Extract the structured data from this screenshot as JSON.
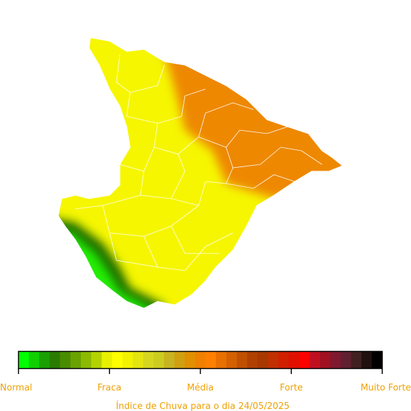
{
  "legend": {
    "labels": [
      "Normal",
      "Fraca",
      "Média",
      "Forte",
      "Muito Forte"
    ],
    "colors": [
      "#00ff00",
      "#10d000",
      "#1aa000",
      "#2a7c00",
      "#4a8c00",
      "#6aa200",
      "#8cba00",
      "#b4d200",
      "#e8f000",
      "#ffff00",
      "#f2f200",
      "#e4e410",
      "#d6d620",
      "#cccc20",
      "#c8b420",
      "#d0a010",
      "#e09000",
      "#f08000",
      "#ff8000",
      "#e87000",
      "#d46000",
      "#c05000",
      "#b04000",
      "#a83800",
      "#c03000",
      "#d02000",
      "#e01000",
      "#ff0000",
      "#c01020",
      "#a01020",
      "#801830",
      "#602030",
      "#402020",
      "#201010",
      "#000000"
    ]
  },
  "caption": "Índice de Chuva para o dia 24/05/2025"
}
